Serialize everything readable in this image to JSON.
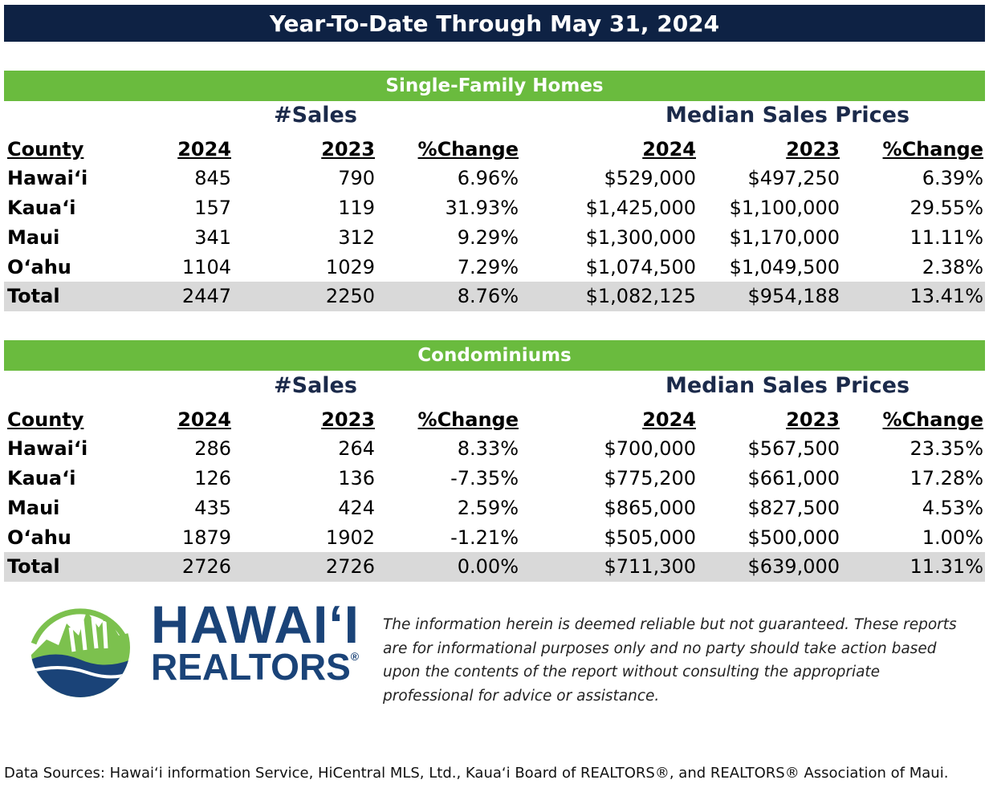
{
  "title": "Year-To-Date Through May 31, 2024",
  "columns": {
    "county": "County",
    "y2024": "2024",
    "y2023": "2023",
    "change": "%Change"
  },
  "group_heads": {
    "sales": "#Sales",
    "prices": "Median Sales Prices"
  },
  "single_family": {
    "label": "Single-Family Homes",
    "rows": [
      {
        "county": "Hawaiʻi",
        "s2024": "845",
        "s2023": "790",
        "schg": "6.96%",
        "p2024": "$529,000",
        "p2023": "$497,250",
        "pchg": "6.39%"
      },
      {
        "county": "Kauaʻi",
        "s2024": "157",
        "s2023": "119",
        "schg": "31.93%",
        "p2024": "$1,425,000",
        "p2023": "$1,100,000",
        "pchg": "29.55%"
      },
      {
        "county": "Maui",
        "s2024": "341",
        "s2023": "312",
        "schg": "9.29%",
        "p2024": "$1,300,000",
        "p2023": "$1,170,000",
        "pchg": "11.11%"
      },
      {
        "county": "Oʻahu",
        "s2024": "1104",
        "s2023": "1029",
        "schg": "7.29%",
        "p2024": "$1,074,500",
        "p2023": "$1,049,500",
        "pchg": "2.38%"
      }
    ],
    "total": {
      "county": "Total",
      "s2024": "2447",
      "s2023": "2250",
      "schg": "8.76%",
      "p2024": "$1,082,125",
      "p2023": "$954,188",
      "pchg": "13.41%"
    }
  },
  "condos": {
    "label": "Condominiums",
    "rows": [
      {
        "county": "Hawaiʻi",
        "s2024": "286",
        "s2023": "264",
        "schg": "8.33%",
        "p2024": "$700,000",
        "p2023": "$567,500",
        "pchg": "23.35%"
      },
      {
        "county": "Kauaʻi",
        "s2024": "126",
        "s2023": "136",
        "schg": "-7.35%",
        "p2024": "$775,200",
        "p2023": "$661,000",
        "pchg": "17.28%"
      },
      {
        "county": "Maui",
        "s2024": "435",
        "s2023": "424",
        "schg": "2.59%",
        "p2024": "$865,000",
        "p2023": "$827,500",
        "pchg": "4.53%"
      },
      {
        "county": "Oʻahu",
        "s2024": "1879",
        "s2023": "1902",
        "schg": "-1.21%",
        "p2024": "$505,000",
        "p2023": "$500,000",
        "pchg": "1.00%"
      }
    ],
    "total": {
      "county": "Total",
      "s2024": "2726",
      "s2023": "2726",
      "schg": "0.00%",
      "p2024": "$711,300",
      "p2023": "$639,000",
      "pchg": "11.31%"
    }
  },
  "logo": {
    "line1": "HAWAIʻI",
    "line2": "REALTORS",
    "mark": "®"
  },
  "disclaimer": "The information herein is deemed reliable but not guaranteed. These reports are for informational purposes only and no party should take action based upon the contents of the report without consulting the appropriate professional for advice or assistance.",
  "sources": "Data Sources: Hawaiʻi information Service, HiCentral MLS, Ltd., Kauaʻi Board of REALTORS®, and REALTORS® Association of Maui.",
  "colors": {
    "title_bg": "#0e2244",
    "section_bg": "#6abb3e",
    "total_bg": "#d9d9d9",
    "logo_blue": "#1a4378",
    "logo_green": "#7cc14e"
  }
}
